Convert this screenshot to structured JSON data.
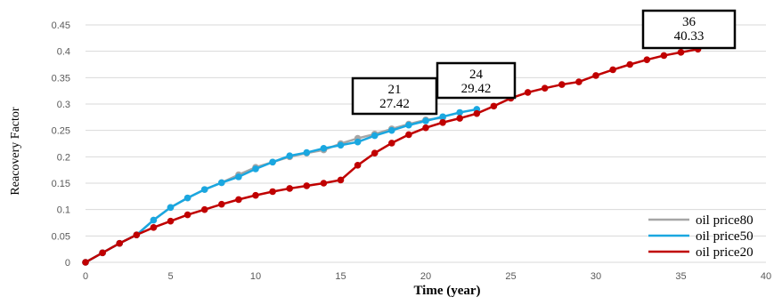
{
  "chart_data": {
    "type": "line",
    "xlabel": "Time (year)",
    "ylabel": "Reacovery Factor",
    "xlim": [
      0,
      40
    ],
    "ylim": [
      0,
      0.45
    ],
    "x_ticks": [
      "0",
      "5",
      "10",
      "15",
      "20",
      "25",
      "30",
      "35",
      "40"
    ],
    "y_ticks": [
      "0",
      "0.05",
      "0.1",
      "0.15",
      "0.2",
      "0.25",
      "0.3",
      "0.35",
      "0.4",
      "0.45"
    ],
    "grid": "horizontal",
    "legend_position": "bottom-right",
    "series": [
      {
        "name": "oil price80",
        "color": "#a6a6a6",
        "x": [
          0,
          1,
          2,
          3,
          4,
          5,
          6,
          7,
          8,
          9,
          10,
          11,
          12,
          13,
          14,
          15,
          16,
          17,
          18,
          19,
          20,
          21
        ],
        "y": [
          0,
          0.018,
          0.036,
          0.052,
          0.08,
          0.104,
          0.122,
          0.138,
          0.151,
          0.166,
          0.18,
          0.19,
          0.2,
          0.207,
          0.213,
          0.225,
          0.235,
          0.243,
          0.253,
          0.262,
          0.27,
          0.274
        ]
      },
      {
        "name": "oil price50",
        "color": "#1aa7e0",
        "x": [
          0,
          1,
          2,
          3,
          4,
          5,
          6,
          7,
          8,
          9,
          10,
          11,
          12,
          13,
          14,
          15,
          16,
          17,
          18,
          19,
          20,
          21,
          22,
          23
        ],
        "y": [
          0,
          0.018,
          0.036,
          0.052,
          0.08,
          0.104,
          0.122,
          0.138,
          0.151,
          0.162,
          0.177,
          0.19,
          0.202,
          0.208,
          0.216,
          0.222,
          0.228,
          0.24,
          0.25,
          0.26,
          0.268,
          0.276,
          0.284,
          0.29
        ]
      },
      {
        "name": "oil price20",
        "color": "#c00000",
        "x": [
          0,
          1,
          2,
          3,
          4,
          5,
          6,
          7,
          8,
          9,
          10,
          11,
          12,
          13,
          14,
          15,
          16,
          17,
          18,
          19,
          20,
          21,
          22,
          23,
          24,
          25,
          26,
          27,
          28,
          29,
          30,
          31,
          32,
          33,
          34,
          35,
          36
        ],
        "y": [
          0,
          0.018,
          0.036,
          0.052,
          0.066,
          0.078,
          0.09,
          0.1,
          0.11,
          0.119,
          0.127,
          0.134,
          0.14,
          0.145,
          0.15,
          0.156,
          0.184,
          0.207,
          0.226,
          0.242,
          0.255,
          0.265,
          0.273,
          0.282,
          0.296,
          0.311,
          0.322,
          0.33,
          0.337,
          0.342,
          0.354,
          0.365,
          0.375,
          0.384,
          0.392,
          0.398,
          0.404
        ]
      }
    ],
    "annotations": [
      {
        "x": 21,
        "y": 0.274,
        "line1": "21",
        "line2": "27.42"
      },
      {
        "x": 24,
        "y": 0.294,
        "line1": "24",
        "line2": "29.42"
      },
      {
        "x": 36,
        "y": 0.4033,
        "line1": "36",
        "line2": "40.33"
      }
    ]
  }
}
